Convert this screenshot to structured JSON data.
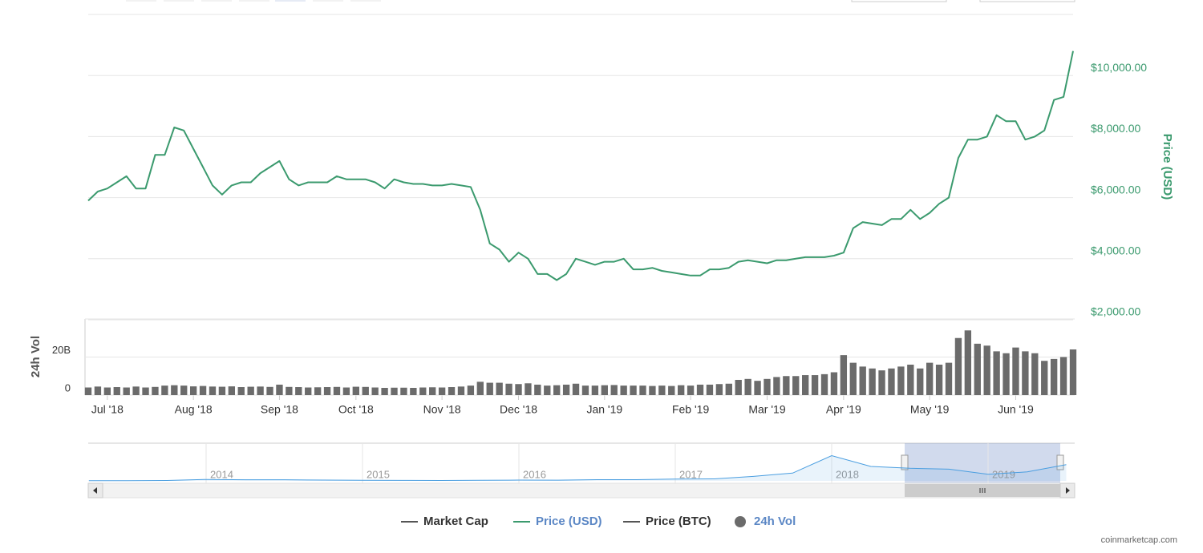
{
  "chart_data": [
    {
      "type": "line",
      "categories": [
        null,
        null,
        "Jul '18",
        null,
        null,
        null,
        null,
        null,
        null,
        null,
        null,
        "Aug '18",
        null,
        null,
        null,
        null,
        null,
        null,
        null,
        null,
        "Sep '18",
        null,
        null,
        null,
        null,
        null,
        null,
        null,
        "Oct '18",
        null,
        null,
        null,
        null,
        null,
        null,
        null,
        null,
        "Nov '18",
        null,
        null,
        null,
        null,
        null,
        null,
        null,
        "Dec '18",
        null,
        null,
        null,
        null,
        null,
        null,
        null,
        null,
        "Jan '19",
        null,
        null,
        null,
        null,
        null,
        null,
        null,
        null,
        "Feb '19",
        null,
        null,
        null,
        null,
        null,
        null,
        null,
        "Mar '19",
        null,
        null,
        null,
        null,
        null,
        null,
        null,
        "Apr '19",
        null,
        null,
        null,
        null,
        null,
        null,
        null,
        null,
        "May '19",
        null,
        null,
        null,
        null,
        null,
        null,
        null,
        null,
        "Jun '19",
        null,
        null,
        null,
        null,
        null,
        null
      ],
      "y_label": "Price (USD)",
      "ylim": [
        2000,
        12000
      ],
      "yticks": [
        {
          "value": 2000,
          "label": "$2,000.00"
        },
        {
          "value": 4000,
          "label": "$4,000.00"
        },
        {
          "value": 6000,
          "label": "$6,000.00"
        },
        {
          "value": 8000,
          "label": "$8,000.00"
        },
        {
          "value": 10000,
          "label": "$10,000.00"
        }
      ],
      "grid": true,
      "series": [
        {
          "name": "Market Cap",
          "color": "#555555",
          "label_color": "#333333",
          "marker": "line"
        },
        {
          "name": "Price (USD)",
          "color": "#3b9a6e",
          "label_color": "#5b87c5",
          "marker": "line",
          "values": [
            5900,
            6200,
            6300,
            6500,
            6700,
            6300,
            6300,
            7400,
            7400,
            8300,
            8200,
            7600,
            7000,
            6400,
            6100,
            6400,
            6500,
            6500,
            6800,
            7000,
            7200,
            6600,
            6400,
            6500,
            6500,
            6500,
            6700,
            6600,
            6600,
            6600,
            6500,
            6300,
            6600,
            6500,
            6450,
            6450,
            6400,
            6400,
            6450,
            6400,
            6350,
            5600,
            4500,
            4300,
            3900,
            4200,
            4000,
            3500,
            3500,
            3300,
            3500,
            4000,
            3900,
            3800,
            3900,
            3900,
            4000,
            3650,
            3650,
            3700,
            3600,
            3550,
            3500,
            3450,
            3450,
            3650,
            3650,
            3700,
            3900,
            3950,
            3900,
            3850,
            3950,
            3950,
            4000,
            4050,
            4050,
            4050,
            4100,
            4200,
            5000,
            5200,
            5150,
            5100,
            5300,
            5300,
            5600,
            5300,
            5500,
            5800,
            6000,
            7300,
            7900,
            7900,
            8000,
            8700,
            8500,
            8500,
            7900,
            8000,
            8200,
            9200,
            9300,
            10800
          ]
        },
        {
          "name": "Price (BTC)",
          "color": "#555555",
          "label_color": "#333333",
          "marker": "line"
        },
        {
          "name": "24h Vol",
          "type": "bar",
          "color": "#6b6b6b",
          "label_color": "#5b87c5",
          "marker": "circle",
          "y_label": "24h Vol",
          "ylim": [
            0,
            40
          ],
          "yticks": [
            0,
            {
              "value": 20,
              "label": "20B"
            }
          ],
          "values": [
            4,
            4.5,
            4,
            4.2,
            4,
            4.5,
            4,
            4.3,
            5,
            5.2,
            5,
            4.6,
            4.8,
            4.5,
            4.4,
            4.6,
            4.2,
            4.4,
            4.5,
            4.3,
            5.5,
            4.3,
            4.2,
            4,
            4.1,
            4.2,
            4.3,
            4,
            4.4,
            4.3,
            4,
            3.8,
            3.9,
            3.9,
            3.8,
            4,
            4.1,
            4,
            4.2,
            4.5,
            5,
            7,
            6.5,
            6.5,
            6,
            5.8,
            6.2,
            5.5,
            5,
            5.2,
            5.5,
            6,
            5,
            5,
            5.2,
            5.3,
            5,
            5,
            5,
            4.8,
            5,
            4.8,
            5.2,
            5,
            5.5,
            5.5,
            5.8,
            6,
            8,
            8.5,
            7.5,
            8.5,
            9.5,
            10,
            10,
            10.5,
            10.5,
            11,
            12,
            21,
            17,
            15,
            14,
            13,
            14,
            15,
            16,
            14,
            17,
            16,
            17,
            30,
            34,
            27,
            26,
            23,
            22,
            25,
            23,
            22,
            18,
            19,
            20,
            24
          ]
        }
      ]
    },
    {
      "type": "area",
      "categories": [
        null,
        null,
        null,
        "2014",
        null,
        null,
        null,
        "2015",
        null,
        null,
        null,
        "2016",
        null,
        null,
        null,
        "2017",
        null,
        null,
        null,
        "2018",
        null,
        null,
        null,
        "2019",
        null,
        null
      ],
      "ylim": [
        0,
        20000
      ],
      "color": "#4a9ee0",
      "values": [
        120,
        100,
        200,
        800,
        600,
        600,
        450,
        300,
        250,
        240,
        300,
        430,
        420,
        650,
        650,
        1000,
        1100,
        2500,
        4300,
        14000,
        8000,
        7000,
        6500,
        3700,
        5000,
        9000
      ]
    }
  ],
  "credit": "coinmarketcap.com"
}
